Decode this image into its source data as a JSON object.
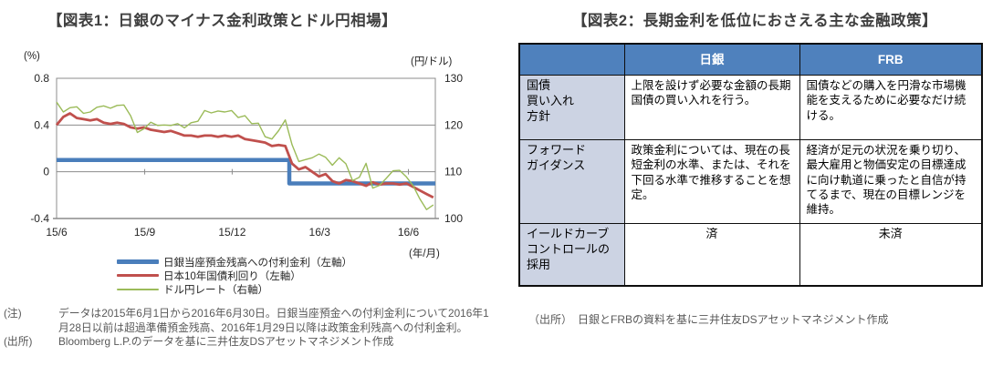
{
  "figure1": {
    "title": "【図表1：日銀のマイナス金利政策とドル円相場】",
    "note_label": "(注)",
    "note_text": "データは2015年6月1日から2016年6月30日。日銀当座預金への付利金利について2016年1月28日以前は超過準備預金残高、2016年1月29日以降は政策金利残高への付利金利。",
    "source_label": "(出所)",
    "source_text": "Bloomberg L.P.のデータを基に三井住友DSアセットマネジメント作成"
  },
  "figure2": {
    "title": "【図表2：長期金利を低位におさえる主な金融政策】",
    "source_label": "（出所）",
    "source_text": "日銀とFRBの資料を基に三井住友DSアセットマネジメント作成"
  },
  "colors": {
    "header_blue": "#4f81bd",
    "row_label_blue": "#ccd3e3",
    "grid_gray": "#8c8c8c",
    "title_text": "#3f3f3f",
    "note_text": "#595959"
  },
  "chart_data": [
    {
      "type": "line",
      "title": "日銀のマイナス金利政策とドル円相場",
      "legend_position": "bottom",
      "grid_color": "#8c8c8c",
      "x_axis": {
        "unit": "(年/月)",
        "tick_labels": [
          "15/6",
          "15/9",
          "15/12",
          "16/3",
          "16/6"
        ],
        "tick_positions_weeks": [
          0,
          13.1,
          26.1,
          39.1,
          52.3
        ],
        "range_weeks": [
          0,
          56.3
        ]
      },
      "left_axis": {
        "unit": "(%)",
        "ticks": [
          0.8,
          0.4,
          0,
          -0.4
        ],
        "tick_labels": [
          "0.8",
          "0.4",
          "0",
          "-0.4"
        ],
        "range": [
          -0.4,
          0.8
        ]
      },
      "right_axis": {
        "unit": "(円/ドル)",
        "ticks": [
          130,
          120,
          110,
          100
        ],
        "tick_labels": [
          "130",
          "120",
          "110",
          "100"
        ],
        "range": [
          100,
          130
        ]
      },
      "gridlines_left_values": [
        0.4,
        0
      ],
      "series": [
        {
          "name": "日銀当座預金残高への付利金利（左軸）",
          "axis": "left",
          "color": "#4a7ebb",
          "stroke_width": 4.5,
          "x": [
            0,
            34.6,
            34.6,
            56.3
          ],
          "y": [
            0.1,
            0.1,
            -0.1,
            -0.1
          ]
        },
        {
          "name": "日本10年国債利回り（左軸）",
          "axis": "left",
          "color": "#c0504d",
          "stroke_width": 2.8,
          "y": [
            0.4,
            0.47,
            0.5,
            0.46,
            0.45,
            0.44,
            0.45,
            0.42,
            0.41,
            0.42,
            0.41,
            0.38,
            0.37,
            0.38,
            0.36,
            0.35,
            0.34,
            0.35,
            0.33,
            0.31,
            0.31,
            0.3,
            0.31,
            0.31,
            0.3,
            0.31,
            0.3,
            0.31,
            0.28,
            0.27,
            0.26,
            0.25,
            0.22,
            0.23,
            0.22,
            0.07,
            0.02,
            0.04,
            0.0,
            -0.04,
            -0.02,
            -0.08,
            -0.1,
            -0.07,
            -0.08,
            -0.1,
            -0.12,
            -0.09,
            -0.11,
            -0.1,
            -0.1,
            -0.11,
            -0.1,
            -0.13,
            -0.16,
            -0.19,
            -0.22
          ]
        },
        {
          "name": "ドル円レート（右軸）",
          "axis": "right",
          "color": "#9bbb59",
          "stroke_width": 1.4,
          "y": [
            124.9,
            122.8,
            123.7,
            123.9,
            122.5,
            122.8,
            123.8,
            124.1,
            123.6,
            124.2,
            124.3,
            122.0,
            118.4,
            119.2,
            120.6,
            119.9,
            120.0,
            119.9,
            120.3,
            119.4,
            120.5,
            120.8,
            123.1,
            122.6,
            123.0,
            122.8,
            123.1,
            121.6,
            122.0,
            120.3,
            120.4,
            117.5,
            117.0,
            118.8,
            121.1,
            115.8,
            112.2,
            112.6,
            113.0,
            113.8,
            113.1,
            111.4,
            113.0,
            111.7,
            108.1,
            108.8,
            111.8,
            106.5,
            107.1,
            108.6,
            110.2,
            110.3,
            108.9,
            107.0,
            104.2,
            101.9,
            102.9
          ]
        }
      ]
    },
    {
      "type": "table",
      "columns": [
        "",
        "日銀",
        "FRB"
      ],
      "rows": [
        [
          "国債\n買い入れ\n方針",
          "上限を設けず必要な金額の長期国債の買い入れを行う。",
          "国債などの購入を円滑な市場機能を支えるために必要なだけ続ける。"
        ],
        [
          "フォワード\nガイダンス",
          "政策金利については、現在の長短金利の水準、または、それを下回る水準で推移することを想定。",
          "経済が足元の状況を乗り切り、最大雇用と物価安定の目標達成に向け軌道に乗ったと自信が持てるまで、現在の目標レンジを維持。"
        ],
        [
          "イールドカーブ\nコントロールの\n採用",
          "済",
          "未済"
        ]
      ]
    }
  ]
}
